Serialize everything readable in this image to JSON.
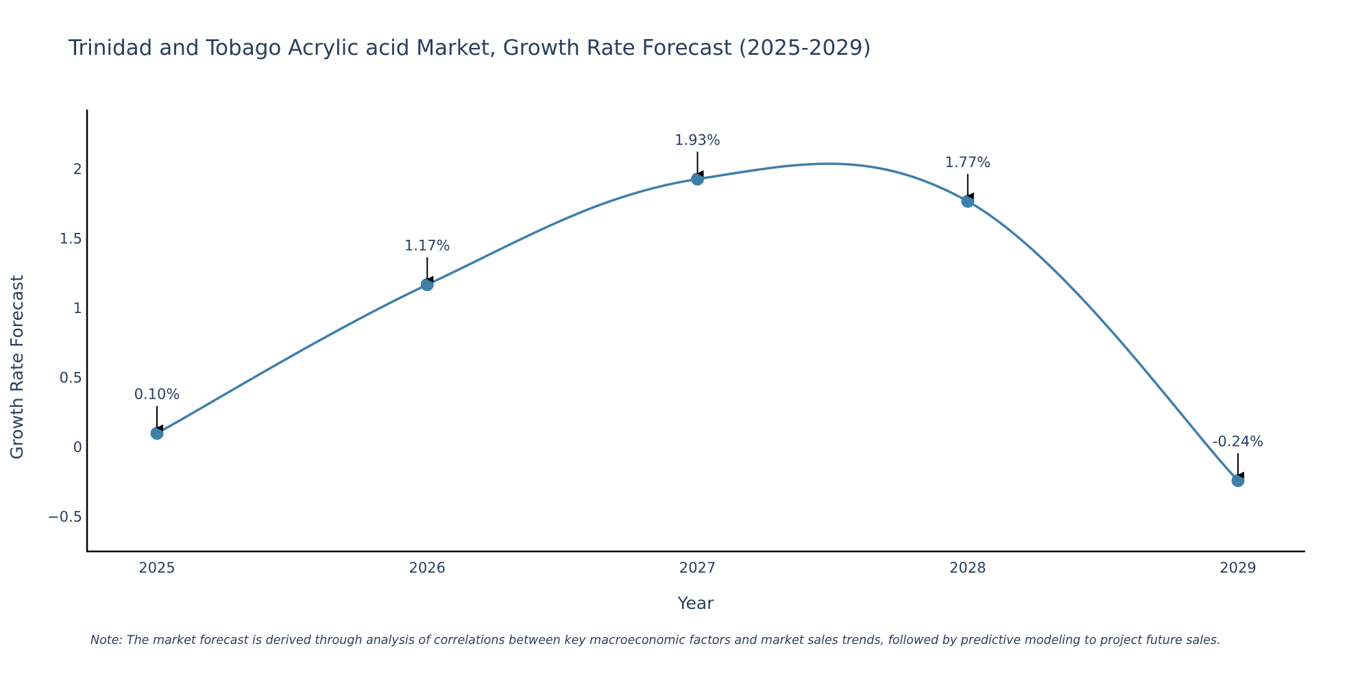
{
  "colors": {
    "line": "#3f7fab",
    "marker": "#3f7fab",
    "axis": "#000000",
    "text": "#2a3f5f",
    "arrow": "#000000"
  },
  "chart_data": {
    "type": "line",
    "title": "Trinidad and Tobago Acrylic acid Market, Growth Rate Forecast (2025-2029)",
    "xlabel": "Year",
    "ylabel": "Growth Rate Forecast",
    "categories": [
      "2025",
      "2026",
      "2027",
      "2028",
      "2029"
    ],
    "values": [
      0.1,
      1.17,
      1.93,
      1.77,
      -0.24
    ],
    "data_labels": [
      "0.10%",
      "1.17%",
      "1.93%",
      "1.77%",
      "-0.24%"
    ],
    "yticks": [
      -0.5,
      0,
      0.5,
      1,
      1.5,
      2
    ],
    "ytick_labels": [
      "−0.5",
      "0",
      "0.5",
      "1",
      "1.5",
      "2"
    ],
    "ylim": [
      -0.75,
      2.43
    ],
    "grid": false,
    "smoothing": "spline",
    "note": "Note: The market forecast is derived through analysis of correlations between key macroeconomic factors and market sales trends, followed by predictive modeling to project future sales."
  }
}
